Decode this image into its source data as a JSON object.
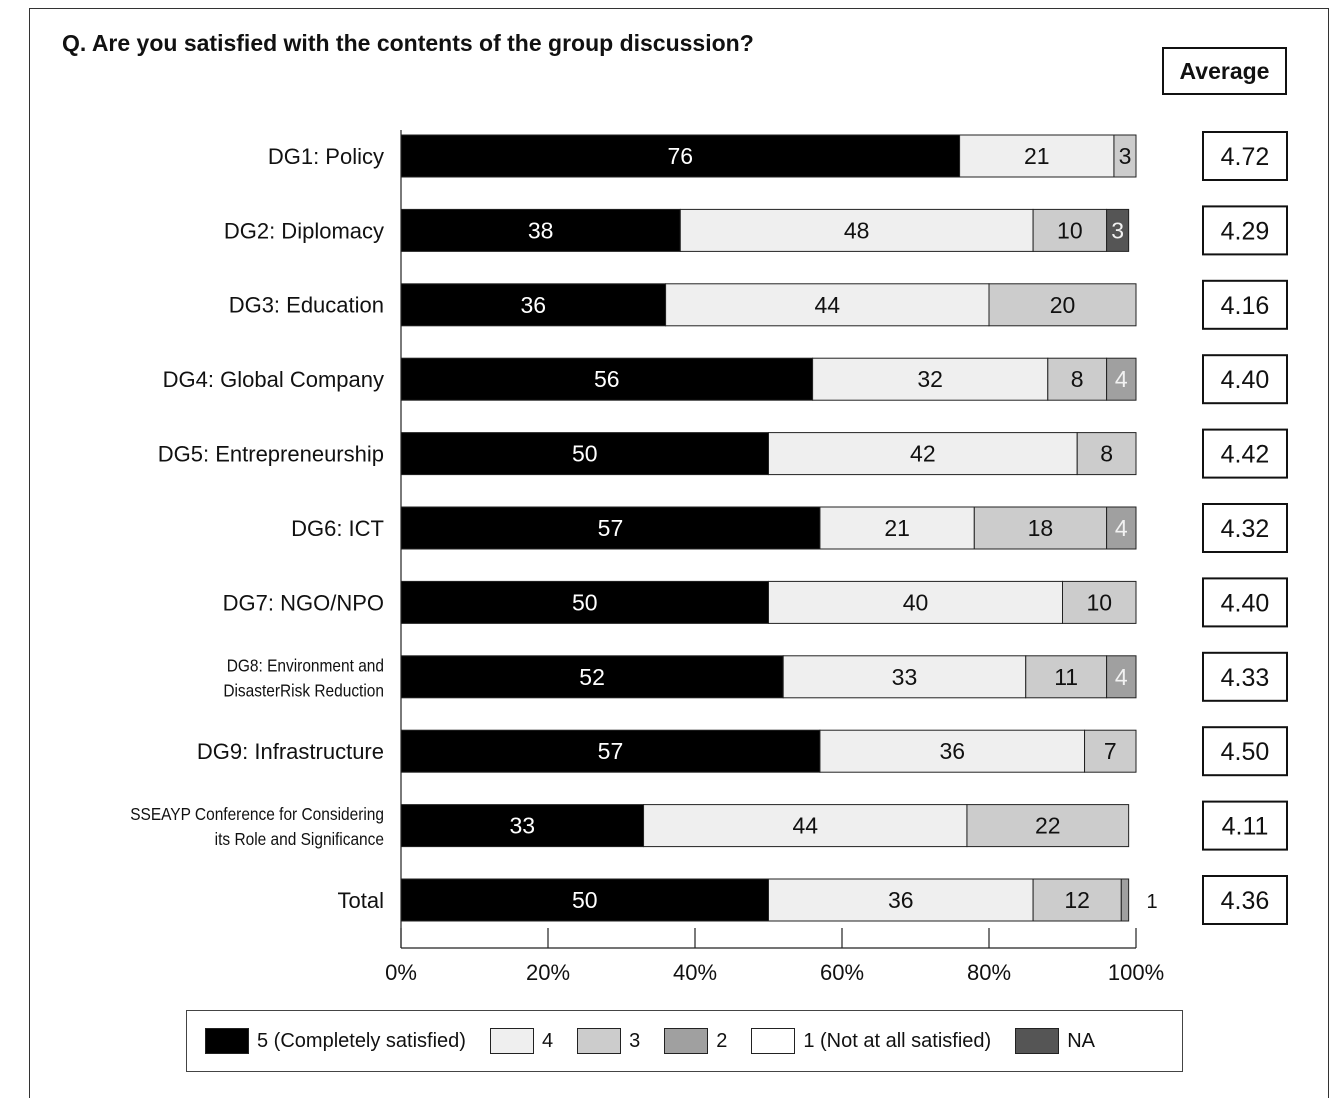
{
  "question": "Q.  Are you satisfied with the contents of the group discussion?",
  "average_header": "Average",
  "colors": {
    "5": "#000000",
    "4": "#efefef",
    "3": "#cccccc",
    "2": "#a0a0a0",
    "1": "#ffffff",
    "NA": "#555555"
  },
  "legend": [
    {
      "key": "5",
      "label": "5 (Completely satisfied)"
    },
    {
      "key": "4",
      "label": "4"
    },
    {
      "key": "3",
      "label": "3"
    },
    {
      "key": "2",
      "label": "2"
    },
    {
      "key": "1",
      "label": "1 (Not at all satisfied)"
    },
    {
      "key": "NA",
      "label": "NA"
    }
  ],
  "chart_data": {
    "type": "bar",
    "orientation": "horizontal-stacked-percent",
    "title": "Q.  Are you satisfied with the contents of the group discussion?",
    "categories": [
      [
        "DG1: Policy"
      ],
      [
        "DG2: Diplomacy"
      ],
      [
        "DG3: Education"
      ],
      [
        "DG4: Global Company"
      ],
      [
        "DG5: Entrepreneurship"
      ],
      [
        "DG6: ICT"
      ],
      [
        "DG7: NGO/NPO"
      ],
      [
        "DG8: Environment and",
        "DisasterRisk Reduction"
      ],
      [
        "DG9: Infrastructure"
      ],
      [
        "SSEAYP Conference for Considering",
        "its Role and Significance"
      ],
      [
        "Total"
      ]
    ],
    "series": [
      {
        "name": "5 (Completely satisfied)",
        "key": "5",
        "values": [
          76,
          38,
          36,
          56,
          50,
          57,
          50,
          52,
          57,
          33,
          50
        ]
      },
      {
        "name": "4",
        "key": "4",
        "values": [
          21,
          48,
          44,
          32,
          42,
          21,
          40,
          33,
          36,
          44,
          36
        ]
      },
      {
        "name": "3",
        "key": "3",
        "values": [
          3,
          10,
          20,
          8,
          8,
          18,
          10,
          11,
          7,
          22,
          12
        ]
      },
      {
        "name": "2",
        "key": "2",
        "values": [
          0,
          0,
          0,
          4,
          0,
          4,
          0,
          4,
          0,
          0,
          1
        ]
      },
      {
        "name": "1 (Not at all satisfied)",
        "key": "1",
        "values": [
          0,
          0,
          0,
          0,
          0,
          0,
          0,
          0,
          0,
          0,
          0
        ]
      },
      {
        "name": "NA",
        "key": "NA",
        "values": [
          0,
          3,
          0,
          0,
          0,
          0,
          0,
          0,
          0,
          0,
          0
        ]
      }
    ],
    "averages": [
      "4.72",
      "4.29",
      "4.16",
      "4.40",
      "4.42",
      "4.32",
      "4.40",
      "4.33",
      "4.50",
      "4.11",
      "4.36"
    ],
    "xlim": [
      0,
      100
    ],
    "xticks": [
      "0%",
      "20%",
      "40%",
      "60%",
      "80%",
      "100%"
    ],
    "legend_position": "bottom"
  }
}
